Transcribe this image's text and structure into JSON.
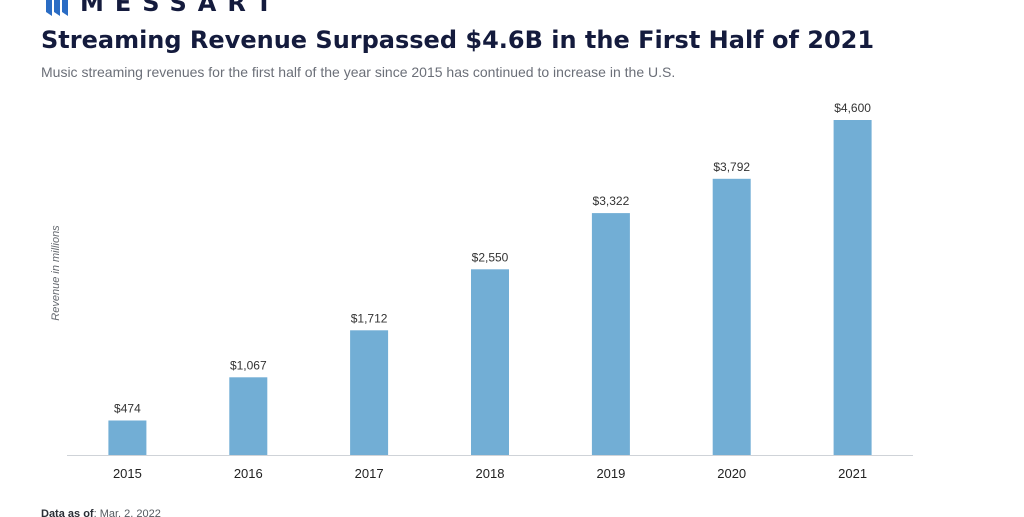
{
  "brand": {
    "name": "MESSART",
    "logo_icon": "messari-logo-icon",
    "color": "#141b3d"
  },
  "header": {
    "title": "Streaming Revenue Surpassed $4.6B in the First Half of 2021",
    "subtitle": "Music streaming revenues for the first half of the year since 2015 has continued to increase in the U.S."
  },
  "chart_data": {
    "type": "bar",
    "categories": [
      "2015",
      "2016",
      "2017",
      "2018",
      "2019",
      "2020",
      "2021"
    ],
    "values": [
      474,
      1067,
      1712,
      2550,
      3322,
      3792,
      4600
    ],
    "value_labels": [
      "$474",
      "$1,067",
      "$1,712",
      "$2,550",
      "$3,322",
      "$3,792",
      "$4,600"
    ],
    "title": "Streaming Revenue Surpassed $4.6B in the First Half of 2021",
    "subtitle": "Music streaming revenues for the first half of the year since 2015 has continued to increase in the U.S.",
    "xlabel": "",
    "ylabel": "Revenue in millions",
    "ylim": [
      0,
      4600
    ],
    "grid": false,
    "legend": "none",
    "bar_color": "#72aed5"
  },
  "footer": {
    "label": "Data as of",
    "value": ": Mar. 2, 2022"
  }
}
